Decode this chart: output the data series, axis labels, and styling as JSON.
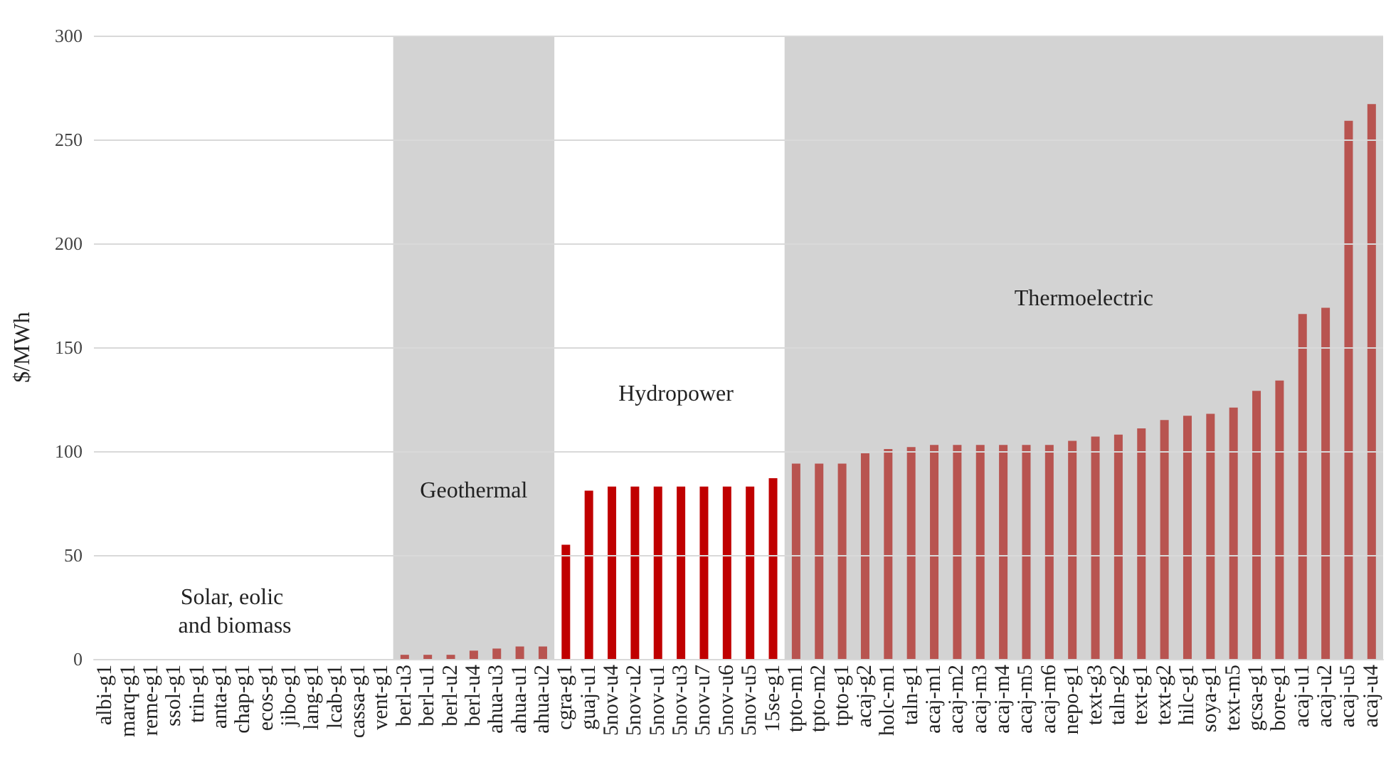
{
  "chart_data": {
    "type": "bar",
    "ylabel": "$/MWh",
    "categories": [
      "albi-g1",
      "marq-g1",
      "reme-g1",
      "ssol-g1",
      "trin-g1",
      "anta-g1",
      "chap-g1",
      "ecos-g1",
      "jibo-g1",
      "lang-g1",
      "lcab-g1",
      "cassa-g1",
      "vent-g1",
      "berl-u3",
      "berl-u1",
      "berl-u2",
      "berl-u4",
      "ahua-u3",
      "ahua-u1",
      "ahua-u2",
      "cgra-g1",
      "guaj-u1",
      "5nov-u4",
      "5nov-u2",
      "5nov-u1",
      "5nov-u3",
      "5nov-u7",
      "5nov-u6",
      "5nov-u5",
      "15se-g1",
      "tpto-m1",
      "tpto-m2",
      "tpto-g1",
      "acaj-g2",
      "holc-m1",
      "taln-g1",
      "acaj-m1",
      "acaj-m2",
      "acaj-m3",
      "acaj-m4",
      "acaj-m5",
      "acaj-m6",
      "nepo-g1",
      "text-g3",
      "taln-g2",
      "text-g1",
      "text-g2",
      "hilc-g1",
      "soya-g1",
      "text-m5",
      "gcsa-g1",
      "bore-g1",
      "acaj-u1",
      "acaj-u2",
      "acaj-u5",
      "acaj-u4"
    ],
    "values": [
      0,
      0,
      0,
      0,
      0,
      0,
      0,
      0,
      0,
      0,
      0,
      0,
      0,
      2,
      2,
      2,
      4,
      5,
      6,
      6,
      55,
      81,
      83,
      83,
      83,
      83,
      83,
      83,
      83,
      87,
      94,
      94,
      94,
      99,
      101,
      102,
      103,
      103,
      103,
      103,
      103,
      103,
      105,
      107,
      108,
      111,
      115,
      117,
      118,
      121,
      129,
      134,
      166,
      169,
      259,
      267
    ],
    "colors": [
      "#b85450",
      "#b85450",
      "#b85450",
      "#b85450",
      "#b85450",
      "#b85450",
      "#b85450",
      "#b85450",
      "#b85450",
      "#b85450",
      "#b85450",
      "#b85450",
      "#b85450",
      "#b85450",
      "#b85450",
      "#b85450",
      "#b85450",
      "#b85450",
      "#b85450",
      "#b85450",
      "#c00000",
      "#c00000",
      "#c00000",
      "#c00000",
      "#c00000",
      "#c00000",
      "#c00000",
      "#c00000",
      "#c00000",
      "#c00000",
      "#b85450",
      "#b85450",
      "#b85450",
      "#b85450",
      "#b85450",
      "#b85450",
      "#b85450",
      "#b85450",
      "#b85450",
      "#b85450",
      "#b85450",
      "#b85450",
      "#b85450",
      "#b85450",
      "#b85450",
      "#b85450",
      "#b85450",
      "#b85450",
      "#b85450",
      "#b85450",
      "#b85450",
      "#b85450",
      "#b85450",
      "#b85450",
      "#b85450",
      "#b85450"
    ],
    "ylim": [
      0,
      300
    ],
    "yticks": [
      0,
      50,
      100,
      150,
      200,
      250,
      300
    ],
    "grid": "y",
    "bands": [
      {
        "axis": "x",
        "from": "berl-u3",
        "to": "ahua-u2",
        "color": "#d3d3d3",
        "label": "Geothermal"
      },
      {
        "axis": "x",
        "from": "tpto-m1",
        "to": "acaj-u4",
        "color": "#d3d3d3",
        "label": "Thermoelectric"
      }
    ],
    "annotations": [
      "Solar, eolic and biomass",
      "Hydropower"
    ]
  }
}
